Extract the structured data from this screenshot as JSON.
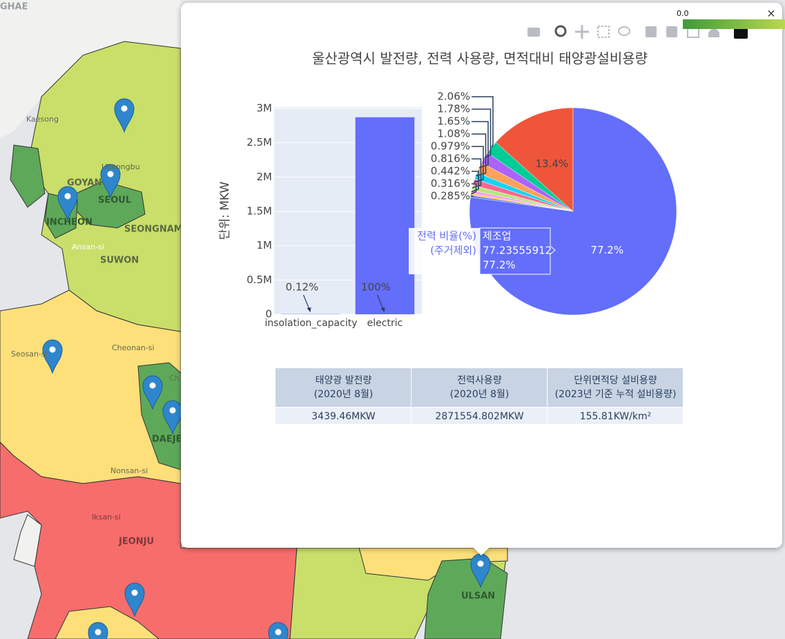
{
  "map": {
    "labels": [
      "GHAE",
      "Kaesong",
      "Uijeongbu",
      "GOYAN",
      "SEOUL",
      "INCHEON",
      "SEONGNAM",
      "Ansan-si",
      "SUWON",
      "Cheonan-si",
      "Seosan-si",
      "Ch",
      "DAEJE",
      "Nonsan-si",
      "Iksan-si",
      "JEONJU",
      "ULSAN"
    ],
    "colorbar_label": "0.0"
  },
  "popup": {
    "title": "울산광역시 발전량, 전력 사용량, 면적대비 태양광설비용량",
    "hover": {
      "name_lines": [
        "전력 비율(%)",
        "(주거제외)"
      ],
      "label": "제조업",
      "value": 77.23555912,
      "percent": "77.2%"
    },
    "table": {
      "header": [
        [
          "태양광 발전량",
          "(2020년 8월)"
        ],
        [
          "전력사용량",
          "(2020년 8월)"
        ],
        [
          "단위면적당 설비용량",
          "(2023년 기준 누적 설비용량)"
        ]
      ],
      "rows": [
        [
          "3439.46MKW",
          "2871554.802MKW",
          "155.81KW/km²"
        ]
      ]
    }
  },
  "chart_data": [
    {
      "type": "bar",
      "y_label": "단위: MKW",
      "categories": [
        "insolation_capacity",
        "electric"
      ],
      "values": [
        3439.46,
        2871554.802
      ],
      "color": "#636efa",
      "ylim": [
        0,
        3020000
      ],
      "yticks": [
        0,
        {
          "value": 500000,
          "label": "0.5M"
        },
        {
          "value": 1000000,
          "label": "1M"
        },
        {
          "value": 1500000,
          "label": "1.5M"
        },
        {
          "value": 2000000,
          "label": "2M"
        },
        {
          "value": 2500000,
          "label": "2.5M"
        },
        {
          "value": 3000000,
          "label": "3M"
        }
      ],
      "grid": true,
      "annotations": [
        "0.12%",
        "100%"
      ]
    },
    {
      "type": "pie",
      "values": [
        13.4,
        2.06,
        1.78,
        1.65,
        1.08,
        0.979,
        0.816,
        0.442,
        0.316,
        0.285,
        77.2
      ],
      "value_labels": [
        "13.4%",
        "2.06%",
        "1.78%",
        "1.65%",
        "1.08%",
        "0.979%",
        "0.816%",
        "0.442%",
        "0.316%",
        "0.285%",
        "77.2%"
      ],
      "colors": [
        "#EF553B",
        "#00cc96",
        "#ab63fa",
        "#FFA15A",
        "#19d3f3",
        "#FF6692",
        "#B6E880",
        "#FF97FF",
        "#FECB52",
        "#636efa",
        "#636efa"
      ]
    }
  ]
}
